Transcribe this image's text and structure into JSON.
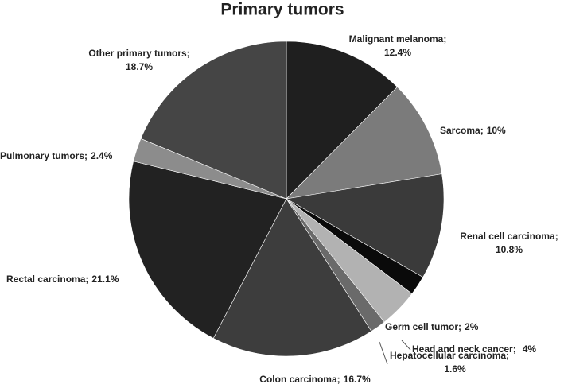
{
  "chart_data": {
    "type": "pie",
    "title": "Primary tumors",
    "categories": [
      "Malignant melanoma;",
      "Sarcoma;",
      "Renal cell carcinoma;",
      "Germ cell tumor;",
      "Head and neck cancer;",
      "Hepatocellular carcinoma;",
      "Colon carcinoma;",
      "Rectal carcinoma;",
      "Pulmonary tumors;",
      "Other primary tumors;"
    ],
    "values": [
      12.4,
      10,
      10.8,
      2,
      4,
      1.6,
      16.7,
      21.1,
      2.4,
      18.7
    ],
    "value_labels": [
      "12.4%",
      "10%",
      "10.8%",
      "2%",
      "4%",
      "1.6%",
      "16.7%",
      "21.1%",
      "2.4%",
      "18.7%"
    ],
    "colors": [
      "#1f1f1f",
      "#7b7b7b",
      "#3a3a3a",
      "#0a0a0a",
      "#b2b2b2",
      "#6a6a6a",
      "#3d3d3d",
      "#222222",
      "#8c8c8c",
      "#454545"
    ]
  }
}
